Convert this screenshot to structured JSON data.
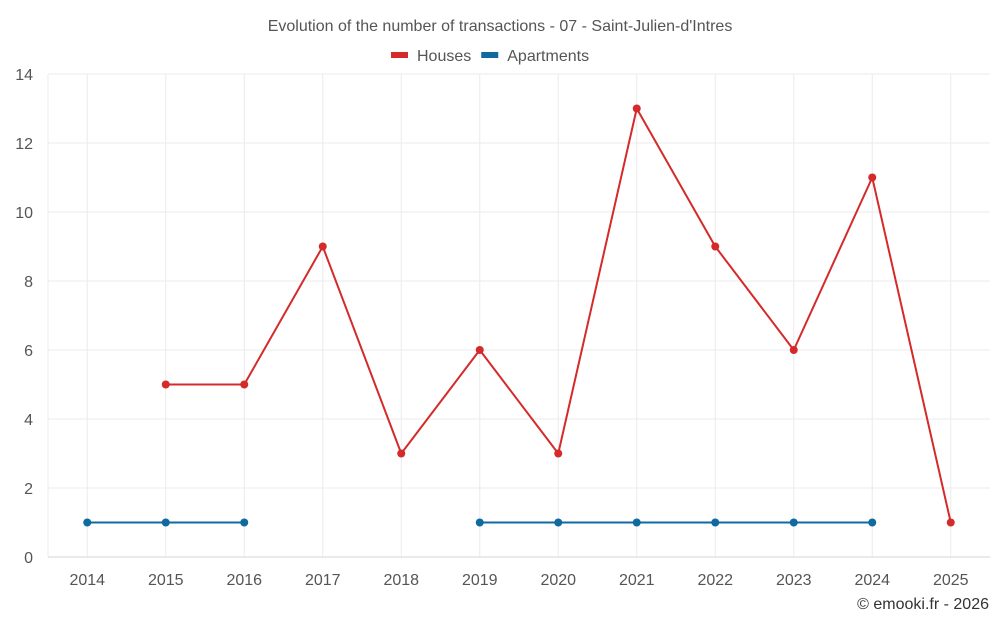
{
  "chart_data": {
    "type": "line",
    "title": "Evolution of the number of transactions - 07 - Saint-Julien-d'Intres",
    "categories": [
      "2014",
      "2015",
      "2016",
      "2017",
      "2018",
      "2019",
      "2020",
      "2021",
      "2022",
      "2023",
      "2024",
      "2025"
    ],
    "series": [
      {
        "name": "Houses",
        "color": "#d42a2a",
        "values": [
          null,
          5,
          5,
          9,
          3,
          6,
          3,
          13,
          9,
          6,
          11,
          1
        ]
      },
      {
        "name": "Apartments",
        "color": "#0f6aa0",
        "values": [
          1,
          1,
          1,
          null,
          null,
          1,
          1,
          1,
          1,
          1,
          1,
          null
        ]
      }
    ],
    "ylim": [
      0,
      14
    ],
    "yticks": [
      "0",
      "2",
      "4",
      "6",
      "8",
      "10",
      "12",
      "14"
    ],
    "grid": true,
    "legend_position": "top-center"
  },
  "credit": "© emooki.fr - 2026"
}
